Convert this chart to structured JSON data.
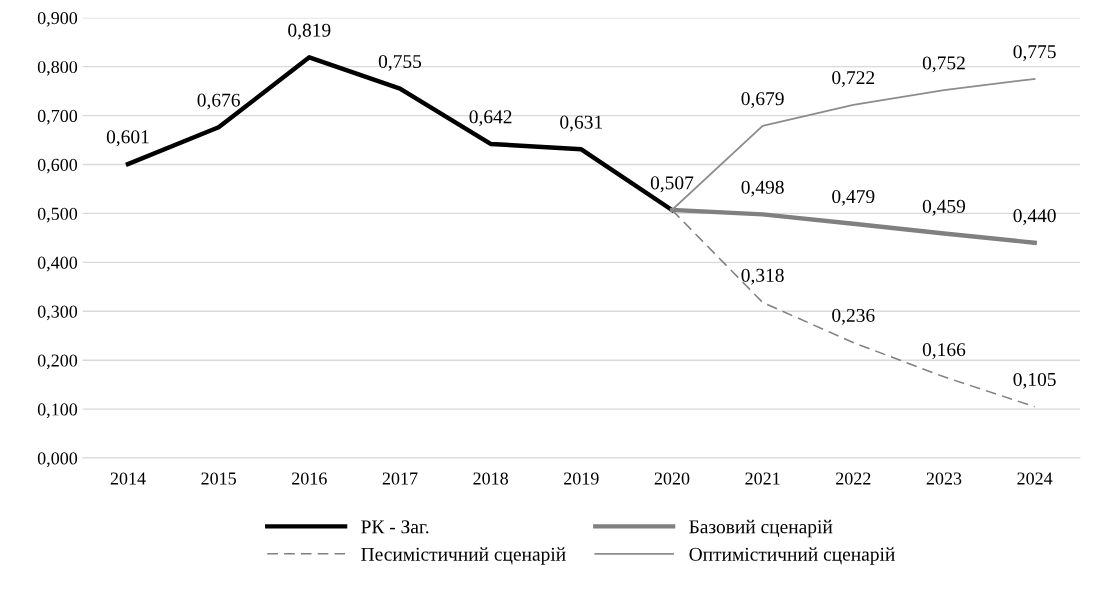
{
  "chart_data": {
    "type": "line",
    "categories": [
      "2014",
      "2015",
      "2016",
      "2017",
      "2018",
      "2019",
      "2020",
      "2021",
      "2022",
      "2023",
      "2024"
    ],
    "series": [
      {
        "name": "РК - Заг.",
        "color": "#000000",
        "line_style": "solid",
        "values": [
          0.601,
          0.676,
          0.819,
          0.755,
          0.642,
          0.631,
          0.507,
          null,
          null,
          null,
          null
        ],
        "value_labels": [
          "0,601",
          "0,676",
          "0,819",
          "0,755",
          "0,642",
          "0,631",
          "0,507",
          null,
          null,
          null,
          null
        ]
      },
      {
        "name": "Базовий сценарій",
        "color": "#808080",
        "line_style": "solid",
        "values": [
          null,
          null,
          null,
          null,
          null,
          null,
          0.507,
          0.498,
          0.479,
          0.459,
          0.44
        ],
        "value_labels": [
          null,
          null,
          null,
          null,
          null,
          null,
          null,
          "0,498",
          "0,479",
          "0,459",
          "0,440"
        ]
      },
      {
        "name": "Песимістичний сценарій",
        "color": "#808080",
        "line_style": "dashed",
        "values": [
          null,
          null,
          null,
          null,
          null,
          null,
          0.507,
          0.318,
          0.236,
          0.166,
          0.105
        ],
        "value_labels": [
          null,
          null,
          null,
          null,
          null,
          null,
          null,
          "0,318",
          "0,236",
          "0,166",
          "0,105"
        ]
      },
      {
        "name": "Оптимістичний сценарій",
        "color": "#8c8c8c",
        "line_style": "solid",
        "values": [
          null,
          null,
          null,
          null,
          null,
          null,
          0.507,
          0.679,
          0.722,
          0.752,
          0.775
        ],
        "value_labels": [
          null,
          null,
          null,
          null,
          null,
          null,
          null,
          "0,679",
          "0,722",
          "0,752",
          "0,775"
        ]
      }
    ],
    "ylim": [
      0,
      0.9
    ],
    "yticks": [
      {
        "value": 0,
        "label": "0,000"
      },
      {
        "value": 0.1,
        "label": "0,100"
      },
      {
        "value": 0.2,
        "label": "0,200"
      },
      {
        "value": 0.3,
        "label": "0,300"
      },
      {
        "value": 0.4,
        "label": "0,400"
      },
      {
        "value": 0.5,
        "label": "0,500"
      },
      {
        "value": 0.6,
        "label": "0,600"
      },
      {
        "value": 0.7,
        "label": "0,700"
      },
      {
        "value": 0.8,
        "label": "0,800"
      },
      {
        "value": 0.9,
        "label": "0,900"
      }
    ],
    "grid": "y",
    "legend": "bottom",
    "marker": "none"
  }
}
